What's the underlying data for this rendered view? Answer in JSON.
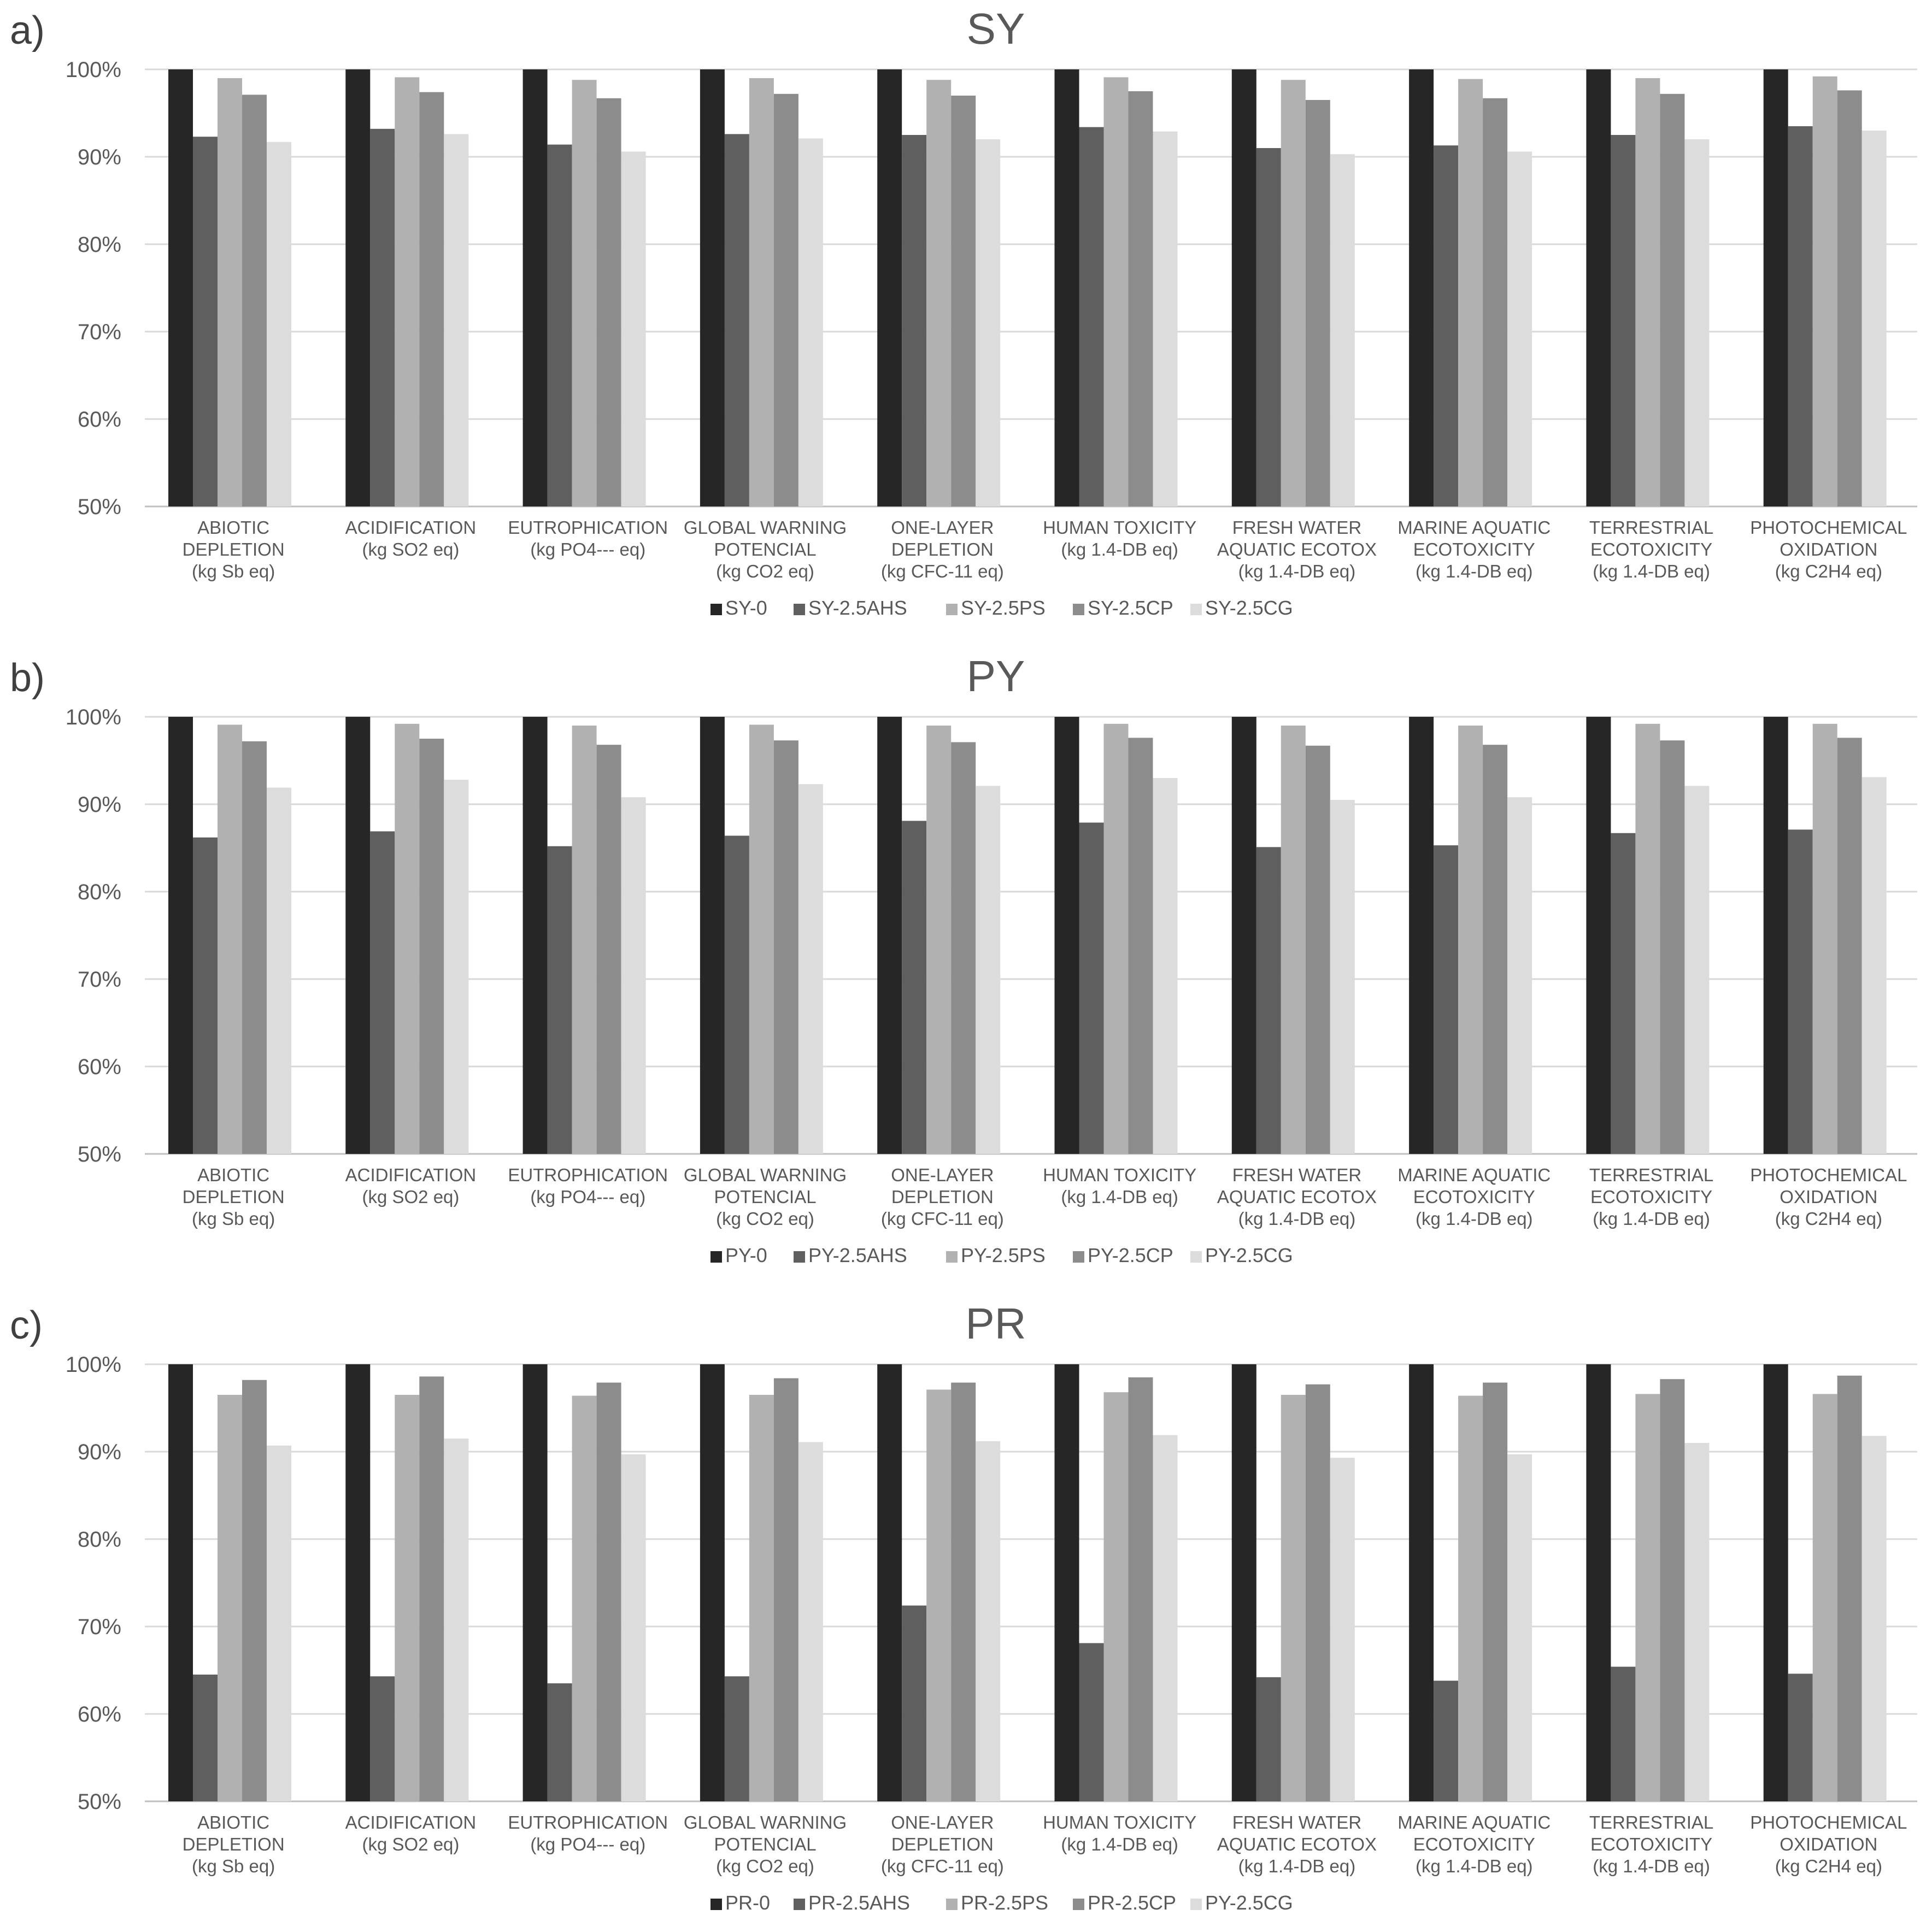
{
  "colors": [
    "#262626",
    "#5f5f5f",
    "#b1b1b1",
    "#8c8c8c",
    "#dcdcdc"
  ],
  "chart_data": [
    {
      "type": "bar",
      "panel_label": "a)",
      "title": "SY",
      "xlabel": "",
      "ylabel": "",
      "ylim": [
        0.5,
        1.0
      ],
      "yticks": [
        "50%",
        "60%",
        "70%",
        "80%",
        "90%",
        "100%"
      ],
      "grid": true,
      "legend_position": "bottom",
      "categories": [
        [
          "ABIOTIC",
          "DEPLETION",
          "(kg Sb eq)"
        ],
        [
          "ACIDIFICATION",
          "(kg SO2 eq)"
        ],
        [
          "EUTROPHICATION",
          "(kg PO4--- eq)"
        ],
        [
          "GLOBAL WARNING",
          "POTENCIAL",
          "(kg CO2 eq)"
        ],
        [
          "ONE-LAYER",
          "DEPLETION",
          "(kg CFC-11 eq)"
        ],
        [
          "HUMAN TOXICITY",
          "(kg 1.4-DB eq)"
        ],
        [
          "FRESH WATER",
          "AQUATIC ECOTOX",
          "(kg 1.4-DB eq)"
        ],
        [
          "MARINE AQUATIC",
          "ECOTOXICITY",
          "(kg 1.4-DB eq)"
        ],
        [
          "TERRESTRIAL",
          "ECOTOXICITY",
          "(kg 1.4-DB eq)"
        ],
        [
          "PHOTOCHEMICAL",
          "OXIDATION",
          "(kg C2H4 eq)"
        ]
      ],
      "series": [
        {
          "name": "SY-0",
          "values": [
            1.0,
            1.0,
            1.0,
            1.0,
            1.0,
            1.0,
            1.0,
            1.0,
            1.0,
            1.0
          ]
        },
        {
          "name": "SY-2.5AHS",
          "values": [
            0.923,
            0.932,
            0.914,
            0.926,
            0.925,
            0.934,
            0.91,
            0.913,
            0.925,
            0.935
          ]
        },
        {
          "name": "SY-2.5PS",
          "values": [
            0.99,
            0.991,
            0.988,
            0.99,
            0.988,
            0.991,
            0.988,
            0.989,
            0.99,
            0.992
          ]
        },
        {
          "name": "SY-2.5CP",
          "values": [
            0.971,
            0.974,
            0.967,
            0.972,
            0.97,
            0.975,
            0.965,
            0.967,
            0.972,
            0.976
          ]
        },
        {
          "name": "SY-2.5CG",
          "values": [
            0.917,
            0.926,
            0.906,
            0.921,
            0.92,
            0.929,
            0.903,
            0.906,
            0.92,
            0.93
          ]
        }
      ]
    },
    {
      "type": "bar",
      "panel_label": "b)",
      "title": "PY",
      "xlabel": "",
      "ylabel": "",
      "ylim": [
        0.5,
        1.0
      ],
      "yticks": [
        "50%",
        "60%",
        "70%",
        "80%",
        "90%",
        "100%"
      ],
      "grid": true,
      "legend_position": "bottom",
      "categories": [
        [
          "ABIOTIC",
          "DEPLETION",
          "(kg Sb eq)"
        ],
        [
          "ACIDIFICATION",
          "(kg SO2 eq)"
        ],
        [
          "EUTROPHICATION",
          "(kg PO4--- eq)"
        ],
        [
          "GLOBAL WARNING",
          "POTENCIAL",
          "(kg CO2 eq)"
        ],
        [
          "ONE-LAYER",
          "DEPLETION",
          "(kg CFC-11 eq)"
        ],
        [
          "HUMAN TOXICITY",
          "(kg 1.4-DB eq)"
        ],
        [
          "FRESH WATER",
          "AQUATIC ECOTOX",
          "(kg 1.4-DB eq)"
        ],
        [
          "MARINE AQUATIC",
          "ECOTOXICITY",
          "(kg 1.4-DB eq)"
        ],
        [
          "TERRESTRIAL",
          "ECOTOXICITY",
          "(kg 1.4-DB eq)"
        ],
        [
          "PHOTOCHEMICAL",
          "OXIDATION",
          "(kg C2H4 eq)"
        ]
      ],
      "series": [
        {
          "name": "PY-0",
          "values": [
            1.0,
            1.0,
            1.0,
            1.0,
            1.0,
            1.0,
            1.0,
            1.0,
            1.0,
            1.0
          ]
        },
        {
          "name": "PY-2.5AHS",
          "values": [
            0.862,
            0.869,
            0.852,
            0.864,
            0.881,
            0.879,
            0.851,
            0.853,
            0.867,
            0.871
          ]
        },
        {
          "name": "PY-2.5PS",
          "values": [
            0.991,
            0.992,
            0.99,
            0.991,
            0.99,
            0.992,
            0.99,
            0.99,
            0.992,
            0.992
          ]
        },
        {
          "name": "PY-2.5CP",
          "values": [
            0.972,
            0.975,
            0.968,
            0.973,
            0.971,
            0.976,
            0.967,
            0.968,
            0.973,
            0.976
          ]
        },
        {
          "name": "PY-2.5CG",
          "values": [
            0.919,
            0.928,
            0.908,
            0.923,
            0.921,
            0.93,
            0.905,
            0.908,
            0.921,
            0.931
          ]
        }
      ]
    },
    {
      "type": "bar",
      "panel_label": "c)",
      "title": "PR",
      "xlabel": "",
      "ylabel": "",
      "ylim": [
        0.5,
        1.0
      ],
      "yticks": [
        "50%",
        "60%",
        "70%",
        "80%",
        "90%",
        "100%"
      ],
      "grid": true,
      "legend_position": "bottom",
      "categories": [
        [
          "ABIOTIC",
          "DEPLETION",
          "(kg Sb eq)"
        ],
        [
          "ACIDIFICATION",
          "(kg SO2 eq)"
        ],
        [
          "EUTROPHICATION",
          "(kg PO4--- eq)"
        ],
        [
          "GLOBAL WARNING",
          "POTENCIAL",
          "(kg CO2 eq)"
        ],
        [
          "ONE-LAYER",
          "DEPLETION",
          "(kg CFC-11 eq)"
        ],
        [
          "HUMAN TOXICITY",
          "(kg 1.4-DB eq)"
        ],
        [
          "FRESH WATER",
          "AQUATIC ECOTOX",
          "(kg 1.4-DB eq)"
        ],
        [
          "MARINE AQUATIC",
          "ECOTOXICITY",
          "(kg 1.4-DB eq)"
        ],
        [
          "TERRESTRIAL",
          "ECOTOXICITY",
          "(kg 1.4-DB eq)"
        ],
        [
          "PHOTOCHEMICAL",
          "OXIDATION",
          "(kg C2H4 eq)"
        ]
      ],
      "series": [
        {
          "name": "PR-0",
          "values": [
            1.0,
            1.0,
            1.0,
            1.0,
            1.0,
            1.0,
            1.0,
            1.0,
            1.0,
            1.0
          ]
        },
        {
          "name": "PR-2.5AHS",
          "values": [
            0.645,
            0.643,
            0.635,
            0.643,
            0.724,
            0.681,
            0.642,
            0.638,
            0.654,
            0.646
          ]
        },
        {
          "name": "PR-2.5PS",
          "values": [
            0.965,
            0.965,
            0.964,
            0.965,
            0.971,
            0.968,
            0.965,
            0.964,
            0.966,
            0.966
          ]
        },
        {
          "name": "PR-2.5CP",
          "values": [
            0.982,
            0.986,
            0.979,
            0.984,
            0.979,
            0.985,
            0.977,
            0.979,
            0.983,
            0.987
          ]
        },
        {
          "name": "PY-2.5CG",
          "values": [
            0.907,
            0.915,
            0.897,
            0.911,
            0.912,
            0.919,
            0.893,
            0.897,
            0.91,
            0.918
          ]
        }
      ]
    }
  ]
}
